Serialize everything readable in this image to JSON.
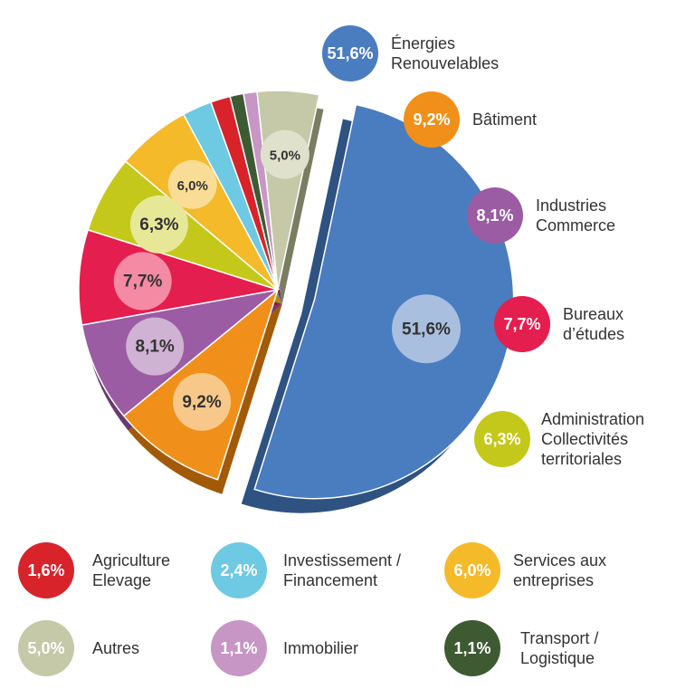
{
  "chart_data": {
    "type": "pie",
    "title": "",
    "slices": [
      {
        "label": "Énergies\nRenouvelables",
        "value": 51.6,
        "display": "51,6%",
        "color": "#4a7cc0",
        "shade": "#2e5282",
        "inner": "#a8bfe0"
      },
      {
        "label": "Bâtiment",
        "value": 9.2,
        "display": "9,2%",
        "color": "#f0901a",
        "shade": "#a35a08",
        "inner": "#f8c88a"
      },
      {
        "label": "Industries\nCommerce",
        "value": 8.1,
        "display": "8,1%",
        "color": "#9b5ca3",
        "shade": "#6a3a70",
        "inner": "#d0b2d4"
      },
      {
        "label": "Bureaux\nd’études",
        "value": 7.7,
        "display": "7,7%",
        "color": "#e41e4e",
        "shade": "#9a0f30",
        "inner": "#f58aa4"
      },
      {
        "label": "Administration\nCollectivités\nterritoriales",
        "value": 6.3,
        "display": "6,3%",
        "color": "#c4c81a",
        "shade": "#8a8d0e",
        "inner": "#e6e898"
      },
      {
        "label": "Services aux\nentreprises",
        "value": 6.0,
        "display": "6,0%",
        "color": "#f4ba2a",
        "shade": "#b5820c",
        "inner": "#f9dc96"
      },
      {
        "label": "Investissement /\nFinancement",
        "value": 2.4,
        "display": "2,4%",
        "color": "#6ec9e2",
        "shade": "#3f8ea3",
        "inner": ""
      },
      {
        "label": "Agriculture\nElevage",
        "value": 1.6,
        "display": "1,6%",
        "color": "#d8232a",
        "shade": "#921519",
        "inner": ""
      },
      {
        "label": "Transport /\nLogistique",
        "value": 1.1,
        "display": "1,1%",
        "color": "#3e5a32",
        "shade": "#263a1f",
        "inner": ""
      },
      {
        "label": "Immobilier",
        "value": 1.1,
        "display": "1,1%",
        "color": "#c796c4",
        "shade": "#8e628b",
        "inner": ""
      },
      {
        "label": "Autres",
        "value": 5.0,
        "display": "5,0%",
        "color": "#c5c9a8",
        "shade": "#7b7d63",
        "inner": "#dfe1cc"
      }
    ]
  },
  "legend": {
    "right": [
      {
        "badge": "51,6%",
        "label": "Énergies\nRenouvelables",
        "color": "#4a7cc0"
      },
      {
        "badge": "9,2%",
        "label": "Bâtiment",
        "color": "#f0901a"
      },
      {
        "badge": "8,1%",
        "label": "Industries\nCommerce",
        "color": "#9b5ca3"
      },
      {
        "badge": "7,7%",
        "label": "Bureaux\nd’études",
        "color": "#e41e4e"
      },
      {
        "badge": "6,3%",
        "label": "Administration\nCollectivités\nterritoriales",
        "color": "#c4c81a"
      }
    ],
    "bottom": [
      {
        "badge": "1,6%",
        "label": "Agriculture\nElevage",
        "color": "#d8232a"
      },
      {
        "badge": "2,4%",
        "label": "Investissement /\nFinancement",
        "color": "#6ec9e2"
      },
      {
        "badge": "6,0%",
        "label": "Services aux\nentreprises",
        "color": "#f4ba2a"
      },
      {
        "badge": "5,0%",
        "label": "Autres",
        "color": "#c5c9a8"
      },
      {
        "badge": "1,1%",
        "label": "Immobilier",
        "color": "#c796c4"
      },
      {
        "badge": "1,1%",
        "label": "Transport /\nLogistique",
        "color": "#3e5a32"
      }
    ]
  }
}
